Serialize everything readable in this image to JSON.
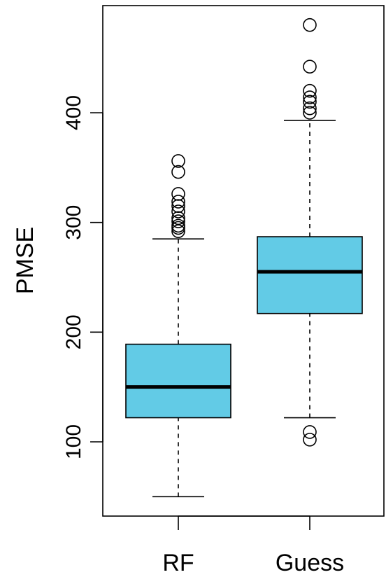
{
  "chart_data": {
    "type": "boxplot",
    "title": "",
    "xlabel": "",
    "ylabel": "PMSE",
    "ylim": [
      35,
      490
    ],
    "yticks": [
      100,
      200,
      300,
      400
    ],
    "grid": false,
    "box_color": "#62CBE6",
    "categories": [
      "RF",
      "Guess"
    ],
    "series": [
      {
        "category": "RF",
        "whisker_low": 50,
        "q1": 122,
        "median": 150,
        "q3": 189,
        "whisker_high": 285,
        "outliers": [
          292,
          295,
          297,
          301,
          304,
          310,
          315,
          319,
          326,
          346,
          356
        ]
      },
      {
        "category": "Guess",
        "whisker_low": 122,
        "q1": 217,
        "median": 255,
        "q3": 287,
        "whisker_high": 393,
        "outliers": [
          102,
          109,
          400,
          404,
          410,
          414,
          420,
          442,
          480
        ]
      }
    ]
  }
}
